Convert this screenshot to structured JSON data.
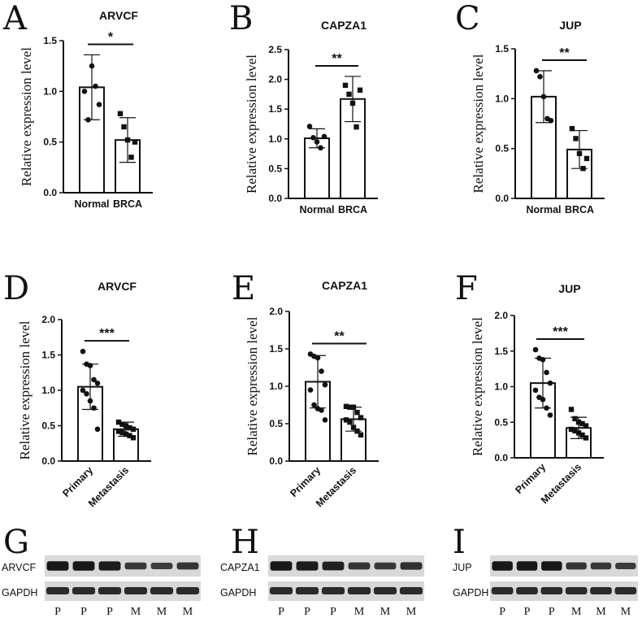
{
  "chart_data": [
    {
      "panel": "A",
      "type": "bar",
      "title": "ARVCF",
      "ylabel": "Relative expression level",
      "categories": [
        "Normal",
        "BRCA"
      ],
      "ylim": [
        0,
        1.5
      ],
      "yticks": [
        "0.0",
        "0.5",
        "1.0",
        "1.5"
      ],
      "values": [
        1.04,
        0.52
      ],
      "errors": [
        0.32,
        0.22
      ],
      "points": [
        [
          1.0,
          0.72,
          1.25,
          1.05,
          0.87
        ],
        [
          0.78,
          0.65,
          0.52,
          0.35,
          0.5
        ]
      ],
      "significance": "*"
    },
    {
      "panel": "B",
      "type": "bar",
      "title": "CAPZA1",
      "ylabel": "Relative expression level",
      "categories": [
        "Normal",
        "BRCA"
      ],
      "ylim": [
        0,
        2.5
      ],
      "yticks": [
        "0.0",
        "0.5",
        "1.0",
        "1.5",
        "2.0",
        "2.5"
      ],
      "values": [
        1.01,
        1.67
      ],
      "errors": [
        0.16,
        0.38
      ],
      "points": [
        [
          1.21,
          1.02,
          0.95,
          0.85,
          1.04
        ],
        [
          1.9,
          1.75,
          1.6,
          1.2,
          1.82
        ]
      ],
      "significance": "**"
    },
    {
      "panel": "C",
      "type": "bar",
      "title": "JUP",
      "ylabel": "Relative expression level",
      "categories": [
        "Normal",
        "BRCA"
      ],
      "ylim": [
        0,
        1.5
      ],
      "yticks": [
        "0.0",
        "0.5",
        "1.0",
        "1.5"
      ],
      "values": [
        1.02,
        0.49
      ],
      "errors": [
        0.26,
        0.19
      ],
      "points": [
        [
          1.28,
          1.22,
          1.02,
          0.8,
          0.78
        ],
        [
          0.7,
          0.6,
          0.45,
          0.3,
          0.4
        ]
      ],
      "significance": "**"
    },
    {
      "panel": "D",
      "type": "bar",
      "title": "ARVCF",
      "ylabel": "Relative expression level",
      "categories": [
        "Primary",
        "Metastasis"
      ],
      "ylim": [
        0,
        2.0
      ],
      "yticks": [
        "0.0",
        "0.5",
        "1.0",
        "1.5",
        "2.0"
      ],
      "values": [
        1.05,
        0.45
      ],
      "errors": [
        0.32,
        0.1
      ],
      "points": [
        [
          1.55,
          1.37,
          1.35,
          1.15,
          1.1,
          1.0,
          0.95,
          0.85,
          0.75,
          0.45
        ],
        [
          0.55,
          0.52,
          0.5,
          0.47,
          0.45,
          0.42,
          0.4,
          0.38,
          0.36,
          0.33
        ]
      ],
      "significance": "***"
    },
    {
      "panel": "E",
      "type": "bar",
      "title": "CAPZA1",
      "ylabel": "Relative expression level",
      "categories": [
        "Primary",
        "Metastasis"
      ],
      "ylim": [
        0,
        2.0
      ],
      "yticks": [
        "0.0",
        "0.5",
        "1.0",
        "1.5",
        "2.0"
      ],
      "values": [
        1.06,
        0.56
      ],
      "errors": [
        0.35,
        0.16
      ],
      "points": [
        [
          1.43,
          1.4,
          1.38,
          1.2,
          1.02,
          0.95,
          0.75,
          0.7,
          0.68,
          0.55
        ],
        [
          0.73,
          0.72,
          0.72,
          0.65,
          0.58,
          0.55,
          0.52,
          0.45,
          0.4,
          0.35
        ]
      ],
      "significance": "**"
    },
    {
      "panel": "F",
      "type": "bar",
      "title": "JUP",
      "ylabel": "Relative expression level",
      "categories": [
        "Primary",
        "Metastasis"
      ],
      "ylim": [
        0,
        2.0
      ],
      "yticks": [
        "0.0",
        "0.5",
        "1.0",
        "1.5",
        "2.0"
      ],
      "values": [
        1.05,
        0.42
      ],
      "errors": [
        0.35,
        0.15
      ],
      "points": [
        [
          1.52,
          1.4,
          1.38,
          1.2,
          1.05,
          0.95,
          0.85,
          0.82,
          0.7,
          0.6
        ],
        [
          0.68,
          0.55,
          0.5,
          0.48,
          0.45,
          0.4,
          0.38,
          0.35,
          0.32,
          0.28
        ]
      ],
      "significance": "***"
    }
  ],
  "blots": [
    {
      "panel": "G",
      "protein": "ARVCF",
      "control": "GAPDH",
      "lanes": [
        "P",
        "P",
        "P",
        "M",
        "M",
        "M"
      ],
      "intensity": [
        0.95,
        0.95,
        0.9,
        0.55,
        0.5,
        0.6
      ]
    },
    {
      "panel": "H",
      "protein": "CAPZA1",
      "control": "GAPDH",
      "lanes": [
        "P",
        "P",
        "P",
        "M",
        "M",
        "M"
      ],
      "intensity": [
        0.95,
        0.9,
        0.85,
        0.6,
        0.55,
        0.65
      ]
    },
    {
      "panel": "I",
      "protein": "JUP",
      "control": "GAPDH",
      "lanes": [
        "P",
        "P",
        "P",
        "M",
        "M",
        "M"
      ],
      "intensity": [
        0.95,
        0.95,
        0.95,
        0.6,
        0.55,
        0.5
      ]
    }
  ]
}
